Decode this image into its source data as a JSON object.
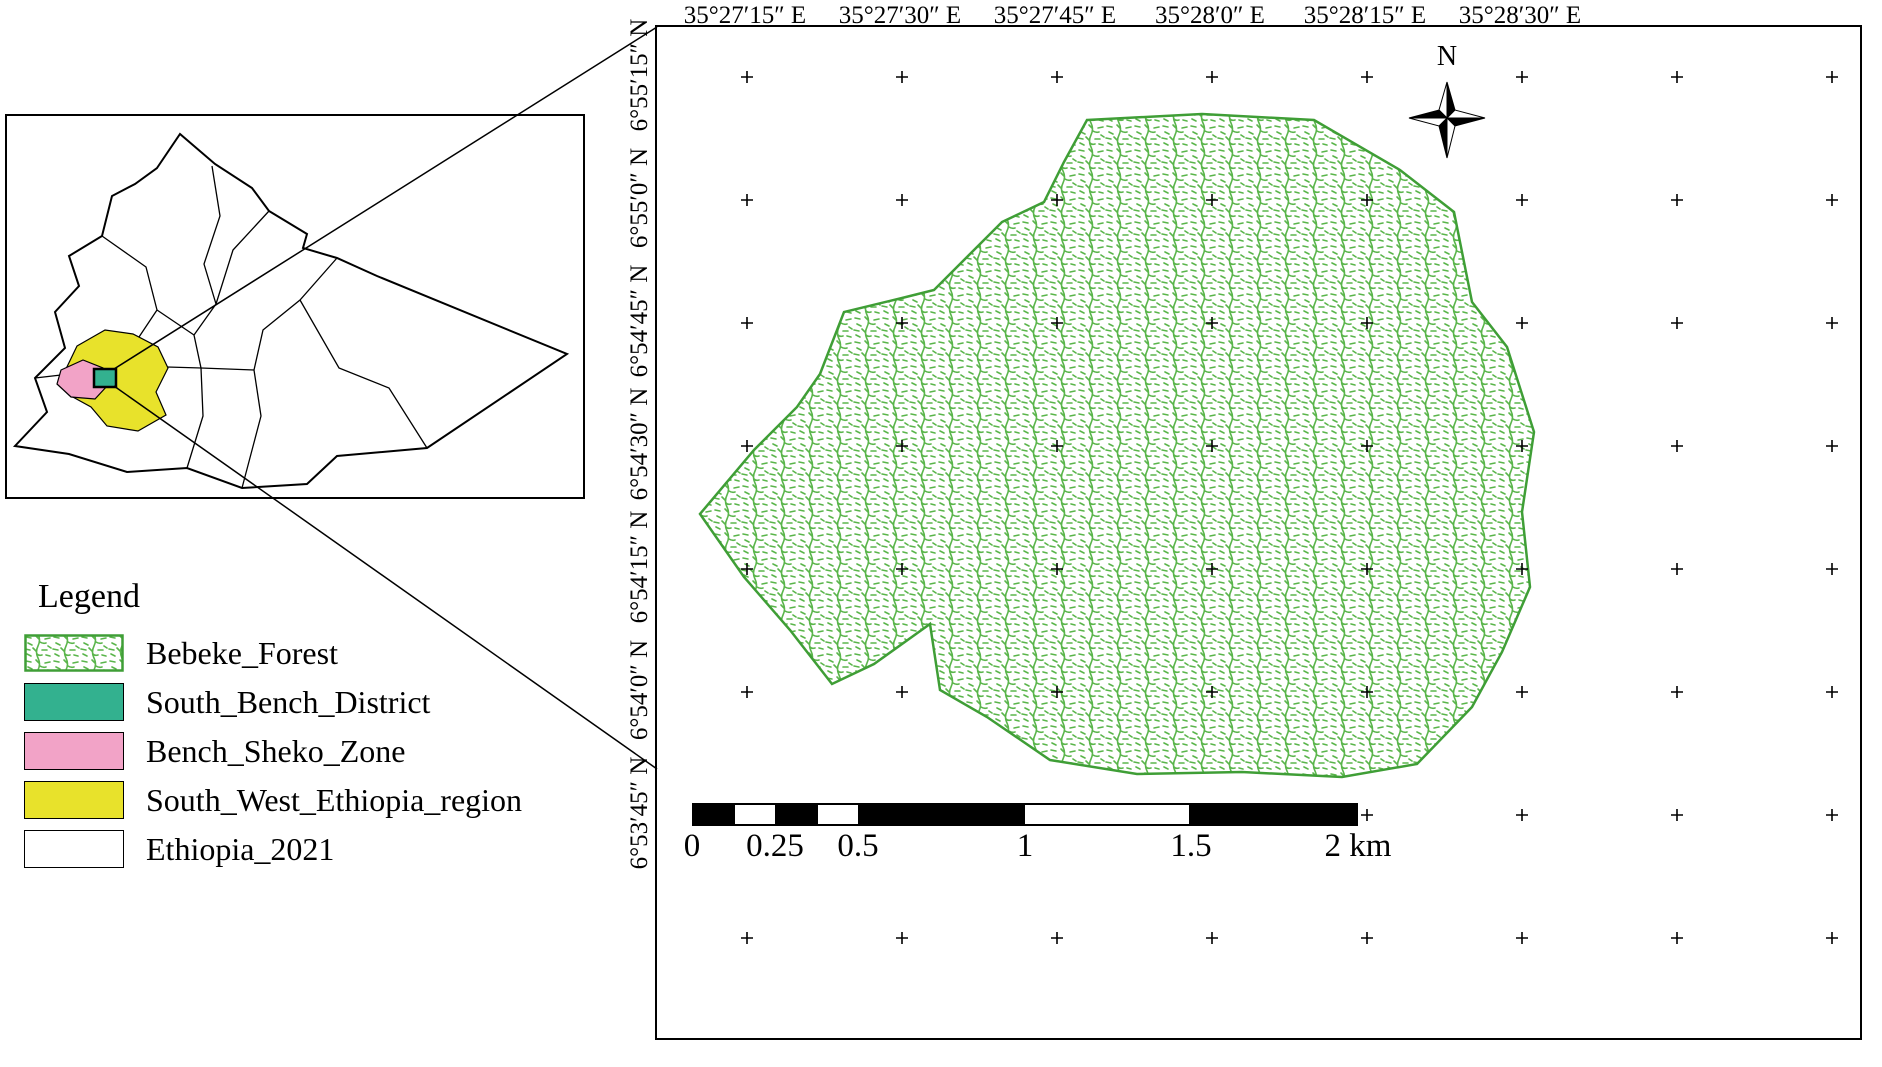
{
  "main_map": {
    "lon_labels": [
      "35°27′15″ E",
      "35°27′30″ E",
      "35°27′45″ E",
      "35°28′0″ E",
      "35°28′15″ E",
      "35°28′30″ E"
    ],
    "lat_labels": [
      "6°55′15″ N",
      "6°55′0″ N",
      "6°54′45″ N",
      "6°54′30″ N",
      "6°54′15″ N",
      "6°54′0″ N",
      "6°53′45″ N"
    ],
    "north_arrow_label": "N",
    "forest_fill_color": "#5ab54b",
    "forest_outline_color": "#3f9e36",
    "scale_bar": {
      "tick_labels": [
        "0",
        "0.25",
        "0.5",
        "1",
        "1.5",
        "2 km"
      ],
      "segments_km": [
        0.125,
        0.125,
        0.125,
        0.125,
        0.5,
        0.5,
        0.5
      ],
      "segment_colors": [
        "#000000",
        "#ffffff",
        "#000000",
        "#ffffff",
        "#000000",
        "#ffffff",
        "#000000"
      ]
    }
  },
  "legend": {
    "title": "Legend",
    "items": [
      {
        "label": "Bebeke_Forest",
        "fill": "pattern",
        "border": "#3f9e36"
      },
      {
        "label": "South_Bench_District",
        "fill": "#33b18f",
        "border": "#000000"
      },
      {
        "label": "Bench_Sheko_Zone",
        "fill": "#f2a3c7",
        "border": "#000000"
      },
      {
        "label": "South_West_Ethiopia_region",
        "fill": "#e8e22b",
        "border": "#000000"
      },
      {
        "label": "Ethiopia_2021",
        "fill": "#ffffff",
        "border": "#000000"
      }
    ]
  },
  "inset": {
    "region_colors": {
      "ethiopia_fill": "#ffffff",
      "south_west_ethiopia_region": "#e8e22b",
      "bench_sheko_zone": "#f2a3c7",
      "south_bench_district": "#33b18f"
    }
  }
}
